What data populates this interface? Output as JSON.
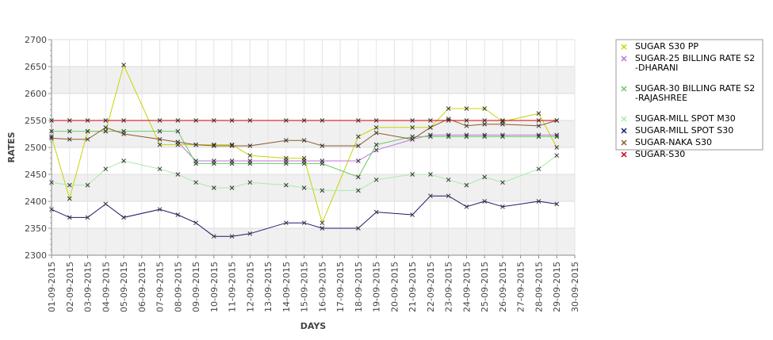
{
  "chart_data": {
    "type": "line",
    "xlabel": "DAYS",
    "ylabel": "RATES",
    "ylim": [
      2300,
      2700
    ],
    "yticks": [
      2300,
      2350,
      2400,
      2450,
      2500,
      2550,
      2600,
      2650,
      2700
    ],
    "categories": [
      "01-09-2015",
      "02-09-2015",
      "03-09-2015",
      "04-09-2015",
      "05-09-2015",
      "06-09-2015",
      "07-09-2015",
      "08-09-2015",
      "09-09-2015",
      "10-09-2015",
      "11-09-2015",
      "12-09-2015",
      "13-09-2015",
      "14-09-2015",
      "15-09-2015",
      "16-09-2015",
      "17-09-2015",
      "18-09-2015",
      "19-09-2015",
      "20-09-2015",
      "21-09-2015",
      "22-09-2015",
      "23-09-2015",
      "24-09-2015",
      "25-09-2015",
      "26-09-2015",
      "27-09-2015",
      "28-09-2015",
      "29-09-2015",
      "30-09-2015"
    ],
    "grid": true,
    "legend_position": "right",
    "series": [
      {
        "name": "SUGAR S30 PP",
        "color": "#c8d400",
        "x": [
          "01-09-2015",
          "02-09-2015",
          "03-09-2015",
          "04-09-2015",
          "05-09-2015",
          "07-09-2015",
          "08-09-2015",
          "09-09-2015",
          "10-09-2015",
          "11-09-2015",
          "12-09-2015",
          "14-09-2015",
          "15-09-2015",
          "16-09-2015",
          "18-09-2015",
          "19-09-2015",
          "21-09-2015",
          "22-09-2015",
          "23-09-2015",
          "24-09-2015",
          "25-09-2015",
          "26-09-2015",
          "28-09-2015",
          "29-09-2015"
        ],
        "values": [
          2520,
          2405,
          2530,
          2530,
          2653,
          2505,
          2505,
          2505,
          2505,
          2505,
          2485,
          2480,
          2480,
          2360,
          2520,
          2537,
          2537,
          2537,
          2572,
          2572,
          2572,
          2548,
          2563,
          2500
        ]
      },
      {
        "name": "SUGAR-25 BILLING RATE S2 -DHARANI",
        "color": "#c070e0",
        "x": [
          "08-09-2015",
          "09-09-2015",
          "10-09-2015",
          "11-09-2015",
          "12-09-2015",
          "14-09-2015",
          "15-09-2015",
          "16-09-2015",
          "18-09-2015",
          "19-09-2015",
          "21-09-2015",
          "22-09-2015",
          "23-09-2015",
          "24-09-2015",
          "25-09-2015",
          "26-09-2015",
          "28-09-2015",
          "29-09-2015"
        ],
        "values": [
          2510,
          2475,
          2475,
          2475,
          2475,
          2475,
          2475,
          2475,
          2475,
          2495,
          2515,
          2523,
          2523,
          2523,
          2523,
          2523,
          2523,
          2523
        ]
      },
      {
        "name": "SUGAR-30 BILLING RATE S2 -RAJASHREE",
        "color": "#66cc66",
        "x": [
          "01-09-2015",
          "02-09-2015",
          "03-09-2015",
          "04-09-2015",
          "05-09-2015",
          "07-09-2015",
          "08-09-2015",
          "09-09-2015",
          "10-09-2015",
          "11-09-2015",
          "12-09-2015",
          "14-09-2015",
          "15-09-2015",
          "16-09-2015",
          "18-09-2015",
          "19-09-2015",
          "21-09-2015",
          "22-09-2015",
          "23-09-2015",
          "24-09-2015",
          "25-09-2015",
          "26-09-2015",
          "28-09-2015",
          "29-09-2015"
        ],
        "values": [
          2530,
          2530,
          2530,
          2530,
          2530,
          2530,
          2530,
          2470,
          2470,
          2470,
          2470,
          2470,
          2470,
          2470,
          2445,
          2505,
          2520,
          2520,
          2520,
          2520,
          2520,
          2520,
          2520,
          2520
        ]
      },
      {
        "name": "SUGAR-MILL SPOT M30",
        "color": "#a8eca8",
        "x": [
          "01-09-2015",
          "02-09-2015",
          "03-09-2015",
          "04-09-2015",
          "05-09-2015",
          "07-09-2015",
          "08-09-2015",
          "09-09-2015",
          "10-09-2015",
          "11-09-2015",
          "12-09-2015",
          "14-09-2015",
          "15-09-2015",
          "16-09-2015",
          "18-09-2015",
          "19-09-2015",
          "21-09-2015",
          "22-09-2015",
          "23-09-2015",
          "24-09-2015",
          "25-09-2015",
          "26-09-2015",
          "28-09-2015",
          "29-09-2015"
        ],
        "values": [
          2435,
          2430,
          2430,
          2460,
          2475,
          2460,
          2450,
          2435,
          2425,
          2425,
          2435,
          2430,
          2425,
          2420,
          2420,
          2440,
          2450,
          2450,
          2440,
          2430,
          2445,
          2435,
          2460,
          2485
        ]
      },
      {
        "name": "SUGAR-MILL SPOT S30",
        "color": "#1a1a6e",
        "x": [
          "01-09-2015",
          "02-09-2015",
          "03-09-2015",
          "04-09-2015",
          "05-09-2015",
          "07-09-2015",
          "08-09-2015",
          "09-09-2015",
          "10-09-2015",
          "11-09-2015",
          "12-09-2015",
          "14-09-2015",
          "15-09-2015",
          "16-09-2015",
          "18-09-2015",
          "19-09-2015",
          "21-09-2015",
          "22-09-2015",
          "23-09-2015",
          "24-09-2015",
          "25-09-2015",
          "26-09-2015",
          "28-09-2015",
          "29-09-2015"
        ],
        "values": [
          2385,
          2370,
          2370,
          2395,
          2370,
          2385,
          2375,
          2360,
          2335,
          2335,
          2340,
          2360,
          2360,
          2350,
          2350,
          2380,
          2375,
          2410,
          2410,
          2390,
          2400,
          2390,
          2400,
          2395
        ]
      },
      {
        "name": "SUGAR-NAKA S30",
        "color": "#8b5a2b",
        "x": [
          "01-09-2015",
          "02-09-2015",
          "03-09-2015",
          "04-09-2015",
          "05-09-2015",
          "07-09-2015",
          "08-09-2015",
          "09-09-2015",
          "10-09-2015",
          "11-09-2015",
          "12-09-2015",
          "14-09-2015",
          "15-09-2015",
          "16-09-2015",
          "18-09-2015",
          "19-09-2015",
          "21-09-2015",
          "22-09-2015",
          "23-09-2015",
          "24-09-2015",
          "25-09-2015",
          "26-09-2015",
          "28-09-2015",
          "29-09-2015"
        ],
        "values": [
          2517,
          2515,
          2515,
          2537,
          2525,
          2515,
          2510,
          2505,
          2503,
          2503,
          2503,
          2513,
          2513,
          2503,
          2503,
          2527,
          2515,
          2537,
          2553,
          2540,
          2543,
          2543,
          2540,
          2550
        ]
      },
      {
        "name": "SUGAR-S30",
        "color": "#cc0000",
        "x": [
          "01-09-2015",
          "02-09-2015",
          "03-09-2015",
          "04-09-2015",
          "05-09-2015",
          "07-09-2015",
          "08-09-2015",
          "09-09-2015",
          "10-09-2015",
          "11-09-2015",
          "12-09-2015",
          "14-09-2015",
          "15-09-2015",
          "16-09-2015",
          "18-09-2015",
          "19-09-2015",
          "21-09-2015",
          "22-09-2015",
          "23-09-2015",
          "24-09-2015",
          "25-09-2015",
          "26-09-2015",
          "28-09-2015",
          "29-09-2015"
        ],
        "values": [
          2550,
          2550,
          2550,
          2550,
          2550,
          2550,
          2550,
          2550,
          2550,
          2550,
          2550,
          2550,
          2550,
          2550,
          2550,
          2550,
          2550,
          2550,
          2550,
          2550,
          2550,
          2550,
          2550,
          2550
        ]
      }
    ],
    "legend_lines": [
      [
        "SUGAR S30 PP"
      ],
      [
        "SUGAR-25 BILLING RATE S2",
        "-DHARANI"
      ],
      [
        "SUGAR-30 BILLING RATE S2",
        "-RAJASHREE"
      ],
      [
        "SUGAR-MILL SPOT M30"
      ],
      [
        "SUGAR-MILL SPOT S30"
      ],
      [
        "SUGAR-NAKA S30"
      ],
      [
        "SUGAR-S30"
      ]
    ]
  }
}
